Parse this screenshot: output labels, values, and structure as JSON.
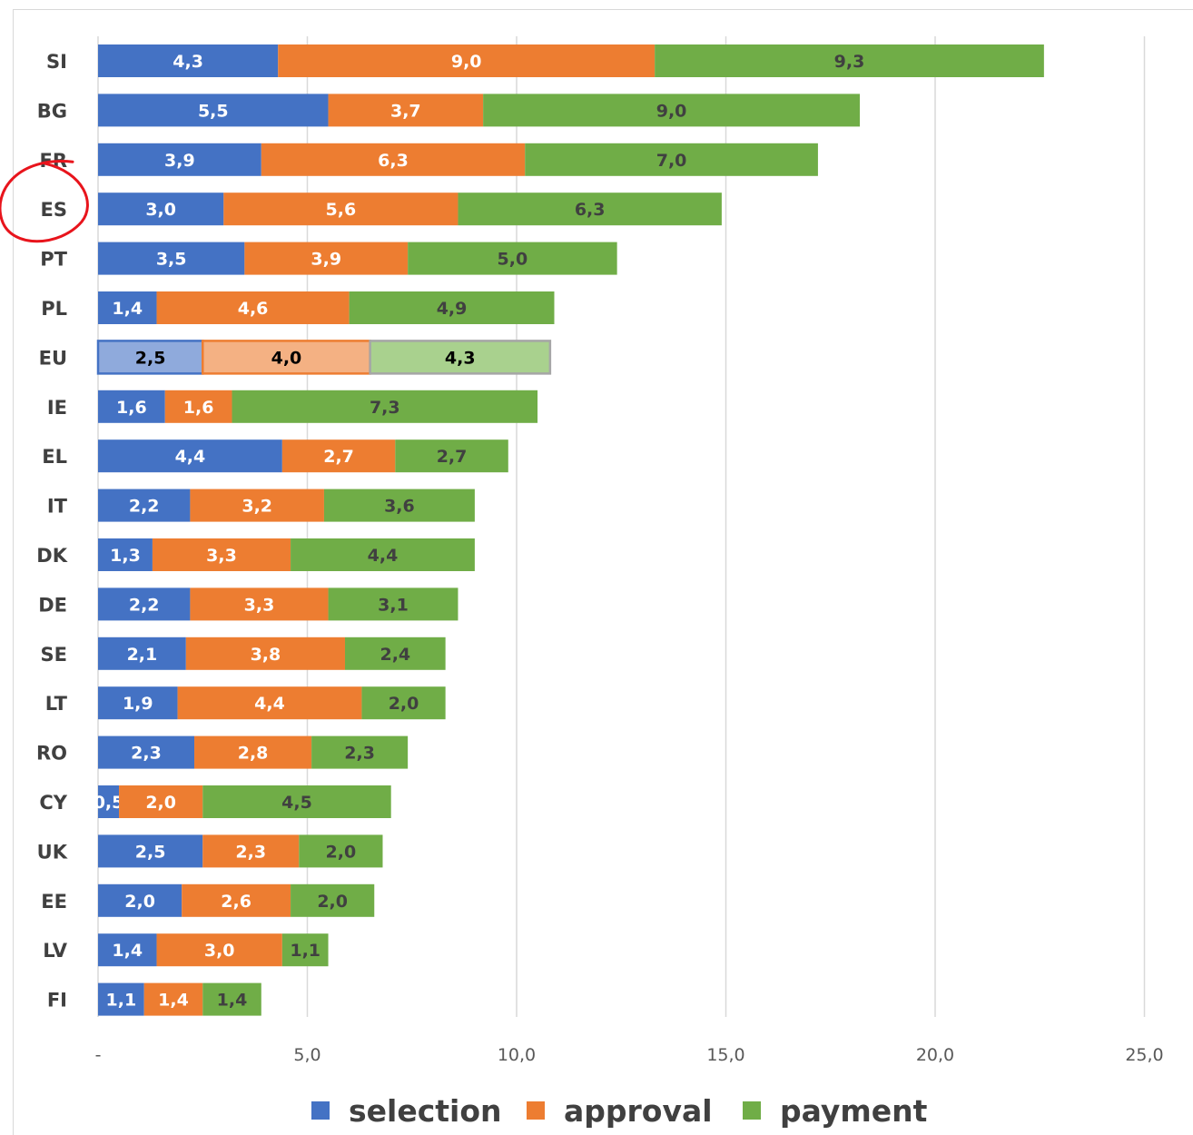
{
  "chart_data": {
    "type": "bar",
    "orientation": "horizontal",
    "stacked": true,
    "categories": [
      "SI",
      "BG",
      "FR",
      "ES",
      "PT",
      "PL",
      "EU",
      "IE",
      "EL",
      "IT",
      "DK",
      "DE",
      "SE",
      "LT",
      "RO",
      "CY",
      "UK",
      "EE",
      "LV",
      "FI"
    ],
    "highlighted_category": "EU",
    "circled_category": "ES",
    "series": [
      {
        "name": "selection",
        "color": "#4472c4",
        "values": [
          4.3,
          5.5,
          3.9,
          3.0,
          3.5,
          1.4,
          2.5,
          1.6,
          4.4,
          2.2,
          1.3,
          2.2,
          2.1,
          1.9,
          2.3,
          0.5,
          2.5,
          2.0,
          1.4,
          1.1
        ],
        "labels": [
          "4,3",
          "5,5",
          "3,9",
          "3,0",
          "3,5",
          "1,4",
          "2,5",
          "1,6",
          "4,4",
          "2,2",
          "1,3",
          "2,2",
          "2,1",
          "1,9",
          "2,3",
          "0,5",
          "2,5",
          "2,0",
          "1,4",
          "1,1"
        ]
      },
      {
        "name": "approval",
        "color": "#ed7d31",
        "values": [
          9.0,
          3.7,
          6.3,
          5.6,
          3.9,
          4.6,
          4.0,
          1.6,
          2.7,
          3.2,
          3.3,
          3.3,
          3.8,
          4.4,
          2.8,
          2.0,
          2.3,
          2.6,
          3.0,
          1.4
        ],
        "labels": [
          "9,0",
          "3,7",
          "6,3",
          "5,6",
          "3,9",
          "4,6",
          "4,0",
          "1,6",
          "2,7",
          "3,2",
          "3,3",
          "3,3",
          "3,8",
          "4,4",
          "2,8",
          "2,0",
          "2,3",
          "2,6",
          "3,0",
          "1,4"
        ]
      },
      {
        "name": "payment",
        "color": "#70ad47",
        "values": [
          9.3,
          9.0,
          7.0,
          6.3,
          5.0,
          4.9,
          4.3,
          7.3,
          2.7,
          3.6,
          4.4,
          3.1,
          2.4,
          2.0,
          2.3,
          4.5,
          2.0,
          2.0,
          1.1,
          1.4
        ],
        "labels": [
          "9,3",
          "9,0",
          "7,0",
          "6,3",
          "5,0",
          "4,9",
          "4,3",
          "7,3",
          "2,7",
          "3,6",
          "4,4",
          "3,1",
          "2,4",
          "2,0",
          "2,3",
          "4,5",
          "2,0",
          "2,0",
          "1,1",
          "1,4"
        ]
      }
    ],
    "highlight_colors": [
      "#8faadc",
      "#f4b183",
      "#a9d18e"
    ],
    "xlim": [
      0,
      25
    ],
    "xticks": [
      0,
      5,
      10,
      15,
      20,
      25
    ],
    "xtick_labels": [
      "-",
      "5,0",
      "10,0",
      "15,0",
      "20,0",
      "25,0"
    ],
    "grid": true,
    "legend_position": "bottom"
  }
}
